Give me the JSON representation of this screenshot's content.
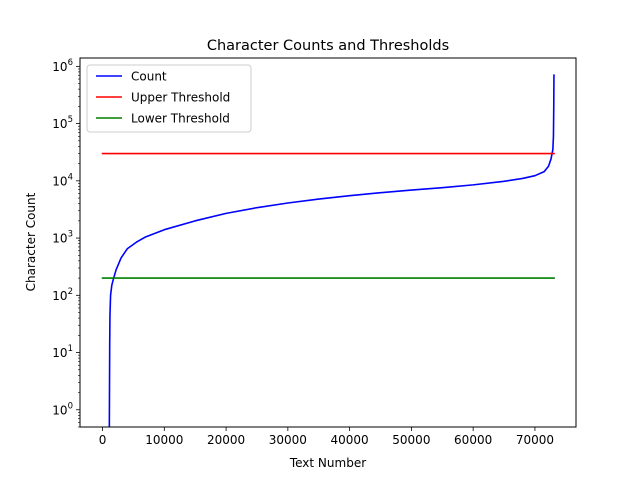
{
  "chart_data": {
    "type": "line",
    "title": "Character Counts and Thresholds",
    "xlabel": "Text Number",
    "ylabel": "Character Count",
    "xlim": [
      -3650,
      76650
    ],
    "ylim": [
      0.5,
      1400000
    ],
    "yscale": "log",
    "grid": false,
    "legend_position": "top-left",
    "x_ticks": [
      {
        "value": 0,
        "label": "0"
      },
      {
        "value": 10000,
        "label": "10000"
      },
      {
        "value": 20000,
        "label": "20000"
      },
      {
        "value": 30000,
        "label": "30000"
      },
      {
        "value": 40000,
        "label": "40000"
      },
      {
        "value": 50000,
        "label": "50000"
      },
      {
        "value": 60000,
        "label": "60000"
      },
      {
        "value": 70000,
        "label": "70000"
      }
    ],
    "y_ticks": [
      {
        "value": 1,
        "base": "10",
        "exp": "0"
      },
      {
        "value": 10,
        "base": "10",
        "exp": "1"
      },
      {
        "value": 100,
        "base": "10",
        "exp": "2"
      },
      {
        "value": 1000,
        "base": "10",
        "exp": "3"
      },
      {
        "value": 10000,
        "base": "10",
        "exp": "4"
      },
      {
        "value": 100000,
        "base": "10",
        "exp": "5"
      },
      {
        "value": 1000000,
        "base": "10",
        "exp": "6"
      }
    ],
    "series": [
      {
        "name": "Count",
        "color": "#0000ff",
        "points": [
          [
            1100,
            0.5
          ],
          [
            1130,
            3
          ],
          [
            1160,
            15
          ],
          [
            1200,
            45
          ],
          [
            1300,
            100
          ],
          [
            1500,
            150
          ],
          [
            1800,
            200
          ],
          [
            2200,
            280
          ],
          [
            3000,
            450
          ],
          [
            4000,
            650
          ],
          [
            5500,
            850
          ],
          [
            7000,
            1050
          ],
          [
            10000,
            1400
          ],
          [
            15000,
            2000
          ],
          [
            20000,
            2700
          ],
          [
            25000,
            3400
          ],
          [
            30000,
            4100
          ],
          [
            35000,
            4800
          ],
          [
            40000,
            5500
          ],
          [
            45000,
            6200
          ],
          [
            50000,
            6900
          ],
          [
            55000,
            7600
          ],
          [
            60000,
            8500
          ],
          [
            65000,
            9800
          ],
          [
            68000,
            11000
          ],
          [
            70000,
            12300
          ],
          [
            71500,
            14500
          ],
          [
            72200,
            18000
          ],
          [
            72600,
            24000
          ],
          [
            72900,
            35000
          ],
          [
            73000,
            60000
          ],
          [
            73050,
            200000
          ],
          [
            73080,
            700000
          ]
        ]
      },
      {
        "name": "Upper Threshold",
        "color": "#ff0000",
        "points": [
          [
            0,
            30000
          ],
          [
            73100,
            30000
          ]
        ]
      },
      {
        "name": "Lower Threshold",
        "color": "#008000",
        "points": [
          [
            0,
            200
          ],
          [
            73100,
            200
          ]
        ]
      }
    ]
  }
}
